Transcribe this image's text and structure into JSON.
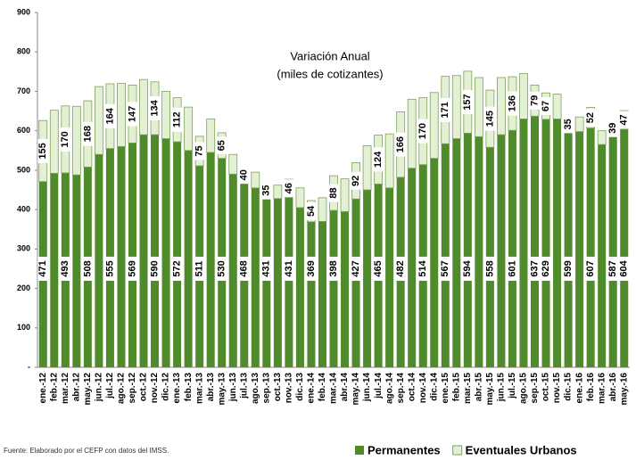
{
  "chart_data": {
    "type": "stacked_bar",
    "title": "Variación Anual",
    "subtitle": "(miles de cotizantes)",
    "source": "Fuente: Elaborado por el CEFP con datos del IMSS.",
    "categories": [
      "ene.-12",
      "feb.-12",
      "mar.-12",
      "abr.-12",
      "may.-12",
      "jun.-12",
      "jul.-12",
      "ago.-12",
      "sep.-12",
      "oct.-12",
      "nov.-12",
      "dic.-12",
      "ene.-13",
      "feb.-13",
      "mar.-13",
      "abr.-13",
      "may.-13",
      "jun.-13",
      "jul.-13",
      "ago.-13",
      "sep.-13",
      "oct.-13",
      "nov.-13",
      "dic.-13",
      "ene.-14",
      "feb.-14",
      "mar.-14",
      "abr.-14",
      "may.-14",
      "jun.-14",
      "jul.-14",
      "ago.-14",
      "sep.-14",
      "oct.-14",
      "nov.-14",
      "dic.-14",
      "ene.-15",
      "feb.-15",
      "mar.-15",
      "abr.-15",
      "may.-15",
      "jun.-15",
      "jul.-15",
      "ago.-15",
      "sep.-15",
      "oct.-15",
      "nov.-15",
      "dic.-15",
      "ene.-16",
      "feb.-16",
      "mar.-16",
      "abr.-16",
      "may.-16"
    ],
    "series": [
      {
        "name": "Permanentes",
        "color": "#4f8a2b",
        "values": [
          471,
          492,
          493,
          488,
          508,
          540,
          555,
          560,
          569,
          590,
          590,
          580,
          572,
          550,
          511,
          545,
          530,
          490,
          468,
          455,
          431,
          428,
          431,
          405,
          369,
          370,
          398,
          395,
          427,
          450,
          465,
          455,
          482,
          505,
          514,
          530,
          567,
          580,
          594,
          585,
          558,
          590,
          601,
          630,
          637,
          629,
          630,
          599,
          598,
          607,
          565,
          587,
          604
        ],
        "value_labels": [
          471,
          null,
          493,
          null,
          508,
          null,
          555,
          null,
          569,
          null,
          590,
          null,
          572,
          null,
          511,
          null,
          530,
          null,
          468,
          null,
          431,
          null,
          431,
          null,
          369,
          null,
          398,
          null,
          427,
          null,
          465,
          null,
          482,
          null,
          514,
          null,
          567,
          null,
          594,
          null,
          558,
          null,
          601,
          null,
          637,
          629,
          null,
          599,
          null,
          607,
          null,
          587,
          604
        ]
      },
      {
        "name": "Eventuales Urbanos",
        "color": "#e3f0d3",
        "values": [
          155,
          160,
          170,
          174,
          168,
          172,
          164,
          160,
          147,
          140,
          134,
          120,
          112,
          110,
          75,
          85,
          65,
          50,
          40,
          40,
          35,
          34,
          46,
          50,
          54,
          60,
          88,
          83,
          92,
          112,
          124,
          137,
          166,
          175,
          170,
          167,
          171,
          160,
          157,
          150,
          145,
          145,
          136,
          115,
          79,
          67,
          63,
          35,
          37,
          52,
          35,
          39,
          47
        ],
        "value_labels": [
          155,
          null,
          170,
          null,
          168,
          null,
          164,
          null,
          147,
          null,
          134,
          null,
          112,
          null,
          75,
          null,
          65,
          null,
          40,
          null,
          35,
          null,
          46,
          null,
          54,
          null,
          88,
          null,
          92,
          null,
          124,
          null,
          166,
          null,
          170,
          null,
          171,
          null,
          157,
          null,
          145,
          null,
          136,
          null,
          79,
          67,
          null,
          35,
          null,
          52,
          null,
          39,
          47
        ]
      }
    ],
    "ylim": [
      0,
      900
    ],
    "yticks": [
      {
        "value": 0,
        "label": "-"
      },
      100,
      200,
      300,
      400,
      500,
      600,
      700,
      800,
      900
    ],
    "legend": "bottom-right"
  }
}
